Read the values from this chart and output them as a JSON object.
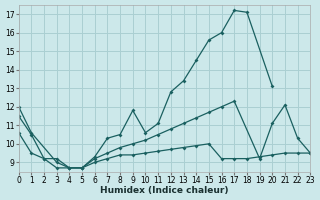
{
  "background_color": "#cce8ea",
  "grid_color": "#aacfd2",
  "line_color": "#1a6060",
  "xlabel": "Humidex (Indice chaleur)",
  "xlim": [
    0,
    23
  ],
  "ylim": [
    8.5,
    17.5
  ],
  "xticks": [
    0,
    1,
    2,
    3,
    4,
    5,
    6,
    7,
    8,
    9,
    10,
    11,
    12,
    13,
    14,
    15,
    16,
    17,
    18,
    19,
    20,
    21,
    22,
    23
  ],
  "yticks": [
    9,
    10,
    11,
    12,
    13,
    14,
    15,
    16,
    17
  ],
  "series": [
    {
      "x": [
        0,
        1,
        3,
        4,
        5,
        6,
        7,
        8,
        9,
        10,
        11,
        12,
        13,
        14,
        15,
        16,
        17,
        18,
        20
      ],
      "y": [
        12,
        10.6,
        9.0,
        8.7,
        8.7,
        9.3,
        10.3,
        10.5,
        11.8,
        10.6,
        11.1,
        12.8,
        13.4,
        14.5,
        15.6,
        16.0,
        17.2,
        17.1,
        13.1
      ]
    },
    {
      "x": [
        0,
        1,
        2,
        3,
        4,
        5,
        6,
        7,
        8,
        9,
        10,
        11,
        12,
        13,
        14,
        15,
        16,
        17,
        19,
        20,
        21,
        22,
        23
      ],
      "y": [
        11.5,
        10.5,
        9.2,
        9.2,
        8.7,
        8.7,
        9.2,
        9.5,
        9.8,
        10.0,
        10.2,
        10.5,
        10.8,
        11.1,
        11.4,
        11.7,
        12.0,
        12.3,
        9.2,
        11.1,
        12.1,
        10.3,
        9.5
      ]
    },
    {
      "x": [
        0,
        1,
        2,
        3,
        4,
        5,
        6,
        7,
        8,
        9,
        10,
        11,
        12,
        13,
        14,
        15,
        16,
        17,
        18,
        19,
        20,
        21,
        22,
        23
      ],
      "y": [
        10.6,
        9.5,
        9.2,
        8.7,
        8.7,
        8.7,
        9.0,
        9.2,
        9.4,
        9.4,
        9.5,
        9.6,
        9.7,
        9.8,
        9.9,
        10.0,
        9.2,
        9.2,
        9.2,
        9.3,
        9.4,
        9.5,
        9.5,
        9.5
      ]
    }
  ]
}
